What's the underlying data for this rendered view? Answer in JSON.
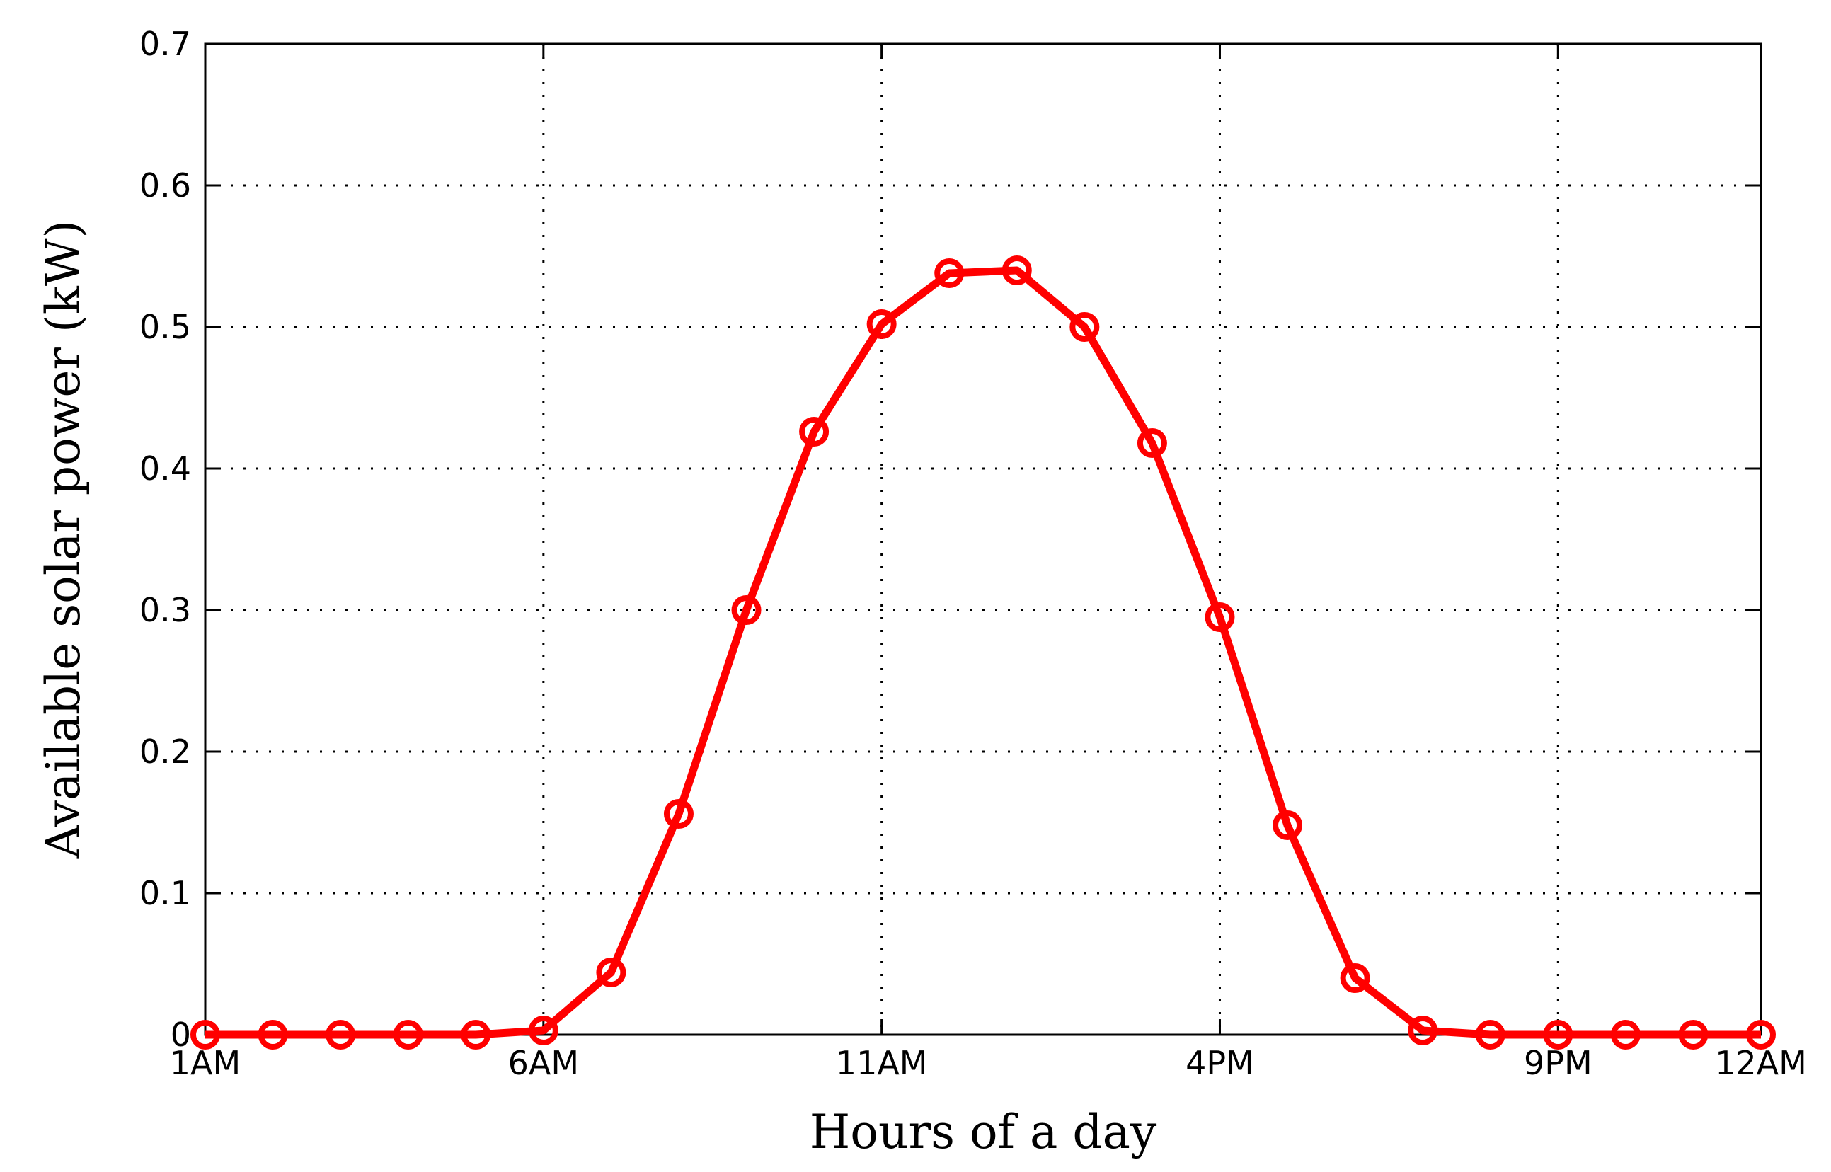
{
  "chart_data": {
    "type": "line",
    "title": "",
    "xlabel": "Hours of a day",
    "ylabel": "Available solar power (kW)",
    "x": [
      1,
      2,
      3,
      4,
      5,
      6,
      7,
      8,
      9,
      10,
      11,
      12,
      13,
      14,
      15,
      16,
      17,
      18,
      19,
      20,
      21,
      22,
      23,
      24
    ],
    "xlim": [
      1,
      24
    ],
    "xticks": [
      {
        "value": 1,
        "label": "1AM"
      },
      {
        "value": 6,
        "label": "6AM"
      },
      {
        "value": 11,
        "label": "11AM"
      },
      {
        "value": 16,
        "label": "4PM"
      },
      {
        "value": 21,
        "label": "9PM"
      },
      {
        "value": 24,
        "label": "12AM"
      }
    ],
    "ylim": [
      0,
      0.7
    ],
    "yticks": [
      {
        "value": 0,
        "label": "0"
      },
      {
        "value": 0.1,
        "label": "0.1"
      },
      {
        "value": 0.2,
        "label": "0.2"
      },
      {
        "value": 0.3,
        "label": "0.3"
      },
      {
        "value": 0.4,
        "label": "0.4"
      },
      {
        "value": 0.5,
        "label": "0.5"
      },
      {
        "value": 0.6,
        "label": "0.6"
      },
      {
        "value": 0.7,
        "label": "0.7"
      }
    ],
    "grid": true,
    "series": [
      {
        "values": [
          0,
          0,
          0,
          0,
          0,
          0.003,
          0.044,
          0.156,
          0.3,
          0.426,
          0.502,
          0.538,
          0.54,
          0.5,
          0.418,
          0.295,
          0.148,
          0.04,
          0.003,
          0,
          0,
          0,
          0,
          0
        ],
        "color": "#ff0000",
        "marker": "circle"
      }
    ]
  }
}
